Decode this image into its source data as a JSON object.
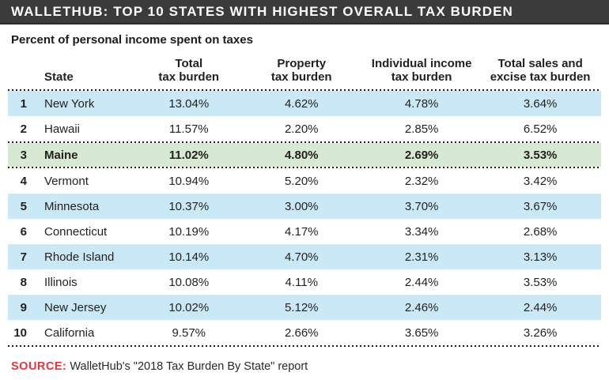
{
  "chart_data": {
    "type": "table",
    "title": "WALLETHUB: TOP 10 STATES WITH HIGHEST OVERALL TAX BURDEN",
    "subtitle": "Percent of personal income spent on taxes",
    "columns": [
      {
        "line1": "",
        "line2": "State"
      },
      {
        "line1": "Total",
        "line2": "tax burden"
      },
      {
        "line1": "Property",
        "line2": "tax burden"
      },
      {
        "line1": "Individual income",
        "line2": "tax burden"
      },
      {
        "line1": "Total sales and",
        "line2": "excise tax burden"
      }
    ],
    "rows": [
      {
        "rank": "1",
        "state": "New York",
        "total": "13.04%",
        "property": "4.62%",
        "income": "4.78%",
        "sales": "3.64%",
        "highlight": "blue"
      },
      {
        "rank": "2",
        "state": "Hawaii",
        "total": "11.57%",
        "property": "2.20%",
        "income": "2.85%",
        "sales": "6.52%",
        "highlight": "none"
      },
      {
        "rank": "3",
        "state": "Maine",
        "total": "11.02%",
        "property": "4.80%",
        "income": "2.69%",
        "sales": "3.53%",
        "highlight": "green"
      },
      {
        "rank": "4",
        "state": "Vermont",
        "total": "10.94%",
        "property": "5.20%",
        "income": "2.32%",
        "sales": "3.42%",
        "highlight": "none"
      },
      {
        "rank": "5",
        "state": "Minnesota",
        "total": "10.37%",
        "property": "3.00%",
        "income": "3.70%",
        "sales": "3.67%",
        "highlight": "blue"
      },
      {
        "rank": "6",
        "state": "Connecticut",
        "total": "10.19%",
        "property": "4.17%",
        "income": "3.34%",
        "sales": "2.68%",
        "highlight": "none"
      },
      {
        "rank": "7",
        "state": "Rhode Island",
        "total": "10.14%",
        "property": "4.70%",
        "income": "2.31%",
        "sales": "3.13%",
        "highlight": "blue"
      },
      {
        "rank": "8",
        "state": "Illinois",
        "total": "10.08%",
        "property": "4.11%",
        "income": "2.44%",
        "sales": "3.53%",
        "highlight": "none"
      },
      {
        "rank": "9",
        "state": "New Jersey",
        "total": "10.02%",
        "property": "5.12%",
        "income": "2.46%",
        "sales": "2.44%",
        "highlight": "blue"
      },
      {
        "rank": "10",
        "state": "California",
        "total": "9.57%",
        "property": "2.66%",
        "income": "3.65%",
        "sales": "3.26%",
        "highlight": "none"
      }
    ],
    "highlighted_state": "Maine",
    "source_label": "SOURCE:",
    "source_text": "WalletHub's \"2018 Tax Burden By State\" report"
  },
  "colors": {
    "header_bar": "#3b3b3b",
    "row_blue": "#cbe8f6",
    "row_green": "#d7e9d3",
    "dotted_line": "#1e1e1e",
    "source_red": "#e4353f",
    "text": "#221f1f"
  }
}
